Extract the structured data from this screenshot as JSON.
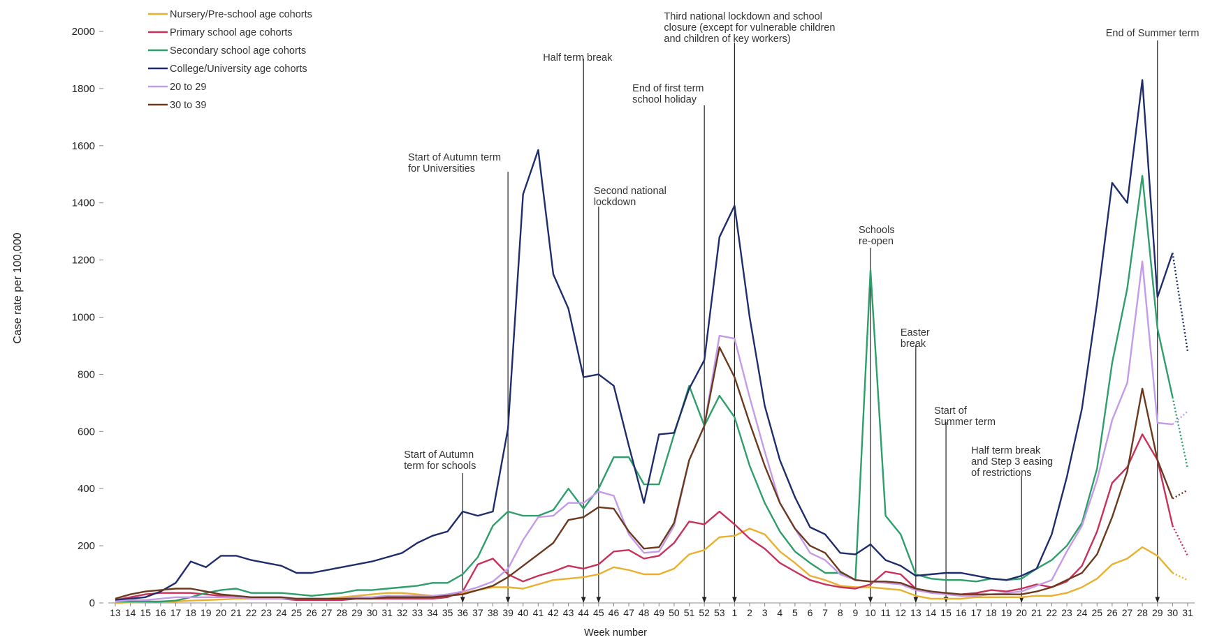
{
  "chart_data": {
    "type": "line",
    "y_label": "Case rate per 100,000",
    "x_label": "Week number",
    "categories": [
      "13",
      "14",
      "15",
      "16",
      "17",
      "18",
      "19",
      "20",
      "21",
      "22",
      "23",
      "24",
      "25",
      "26",
      "27",
      "28",
      "29",
      "30",
      "31",
      "32",
      "33",
      "34",
      "35",
      "36",
      "37",
      "38",
      "39",
      "40",
      "41",
      "42",
      "43",
      "44",
      "45",
      "46",
      "47",
      "48",
      "49",
      "50",
      "51",
      "52",
      "53",
      "1",
      "2",
      "3",
      "4",
      "5",
      "6",
      "7",
      "8",
      "9",
      "10",
      "11",
      "12",
      "13",
      "14",
      "15",
      "16",
      "17",
      "18",
      "19",
      "20",
      "21",
      "22",
      "23",
      "24",
      "25",
      "26",
      "27",
      "28",
      "29",
      "30",
      "31"
    ],
    "ylim": [
      0,
      2000
    ],
    "yticks": [
      0,
      200,
      400,
      600,
      800,
      1000,
      1200,
      1400,
      1600,
      1800,
      2000
    ],
    "grid": false,
    "legend": "top-left",
    "series": [
      {
        "name": "Nursery/Pre-school age cohorts",
        "color": "#e8b02e",
        "values": [
          0,
          2,
          3,
          5,
          5,
          8,
          10,
          12,
          15,
          15,
          15,
          15,
          15,
          15,
          15,
          20,
          25,
          30,
          35,
          35,
          30,
          25,
          25,
          35,
          45,
          55,
          55,
          50,
          65,
          80,
          85,
          90,
          100,
          125,
          115,
          100,
          100,
          120,
          170,
          185,
          230,
          235,
          260,
          240,
          180,
          140,
          95,
          80,
          60,
          55,
          55,
          50,
          45,
          25,
          15,
          15,
          15,
          20,
          20,
          20,
          20,
          25,
          25,
          35,
          55,
          85,
          135,
          155,
          195,
          165,
          105,
          80
        ]
      },
      {
        "name": "Primary school age cohorts",
        "color": "#c8325a",
        "values": [
          10,
          20,
          30,
          35,
          35,
          35,
          30,
          25,
          20,
          15,
          15,
          15,
          10,
          10,
          10,
          10,
          15,
          15,
          15,
          15,
          15,
          15,
          20,
          40,
          135,
          155,
          100,
          75,
          95,
          110,
          130,
          120,
          135,
          180,
          185,
          155,
          165,
          210,
          285,
          275,
          320,
          275,
          225,
          190,
          140,
          110,
          80,
          65,
          55,
          50,
          65,
          110,
          100,
          50,
          40,
          30,
          30,
          35,
          45,
          40,
          50,
          65,
          55,
          75,
          130,
          250,
          420,
          475,
          590,
          500,
          270,
          165
        ]
      },
      {
        "name": "Secondary school age cohorts",
        "color": "#2e9e6a",
        "values": [
          5,
          5,
          5,
          5,
          8,
          20,
          35,
          45,
          50,
          35,
          35,
          35,
          30,
          25,
          30,
          35,
          45,
          45,
          50,
          55,
          60,
          70,
          70,
          100,
          160,
          270,
          320,
          305,
          305,
          325,
          400,
          330,
          400,
          510,
          510,
          415,
          415,
          590,
          760,
          620,
          725,
          650,
          480,
          350,
          250,
          180,
          140,
          105,
          105,
          80,
          1165,
          305,
          240,
          100,
          85,
          80,
          80,
          75,
          85,
          80,
          85,
          120,
          150,
          200,
          280,
          470,
          840,
          1100,
          1495,
          960,
          720,
          470
        ]
      },
      {
        "name": "College/University age cohorts",
        "color": "#1f2d6b",
        "values": [
          10,
          15,
          20,
          40,
          70,
          145,
          125,
          165,
          165,
          150,
          140,
          130,
          105,
          105,
          115,
          125,
          135,
          145,
          160,
          175,
          210,
          235,
          250,
          320,
          305,
          320,
          610,
          1430,
          1585,
          1150,
          1030,
          790,
          800,
          760,
          550,
          350,
          590,
          595,
          750,
          850,
          1280,
          1390,
          1000,
          690,
          500,
          370,
          265,
          240,
          175,
          170,
          205,
          150,
          130,
          95,
          100,
          105,
          105,
          95,
          85,
          80,
          95,
          120,
          240,
          440,
          680,
          1050,
          1470,
          1400,
          1830,
          1070,
          1225,
          880
        ]
      },
      {
        "name": "20 to 29",
        "color": "#c39be8",
        "values": [
          5,
          10,
          10,
          15,
          20,
          20,
          20,
          20,
          20,
          15,
          15,
          15,
          15,
          15,
          15,
          15,
          20,
          20,
          25,
          25,
          25,
          25,
          30,
          40,
          55,
          75,
          120,
          220,
          300,
          305,
          350,
          350,
          390,
          375,
          240,
          175,
          180,
          270,
          500,
          620,
          935,
          925,
          720,
          530,
          350,
          260,
          175,
          150,
          100,
          80,
          75,
          70,
          65,
          45,
          35,
          30,
          25,
          25,
          30,
          35,
          40,
          60,
          80,
          180,
          270,
          430,
          640,
          770,
          1195,
          630,
          625,
          670
        ]
      },
      {
        "name": "30 to 39",
        "color": "#6b3a1e",
        "values": [
          15,
          30,
          40,
          45,
          50,
          50,
          40,
          30,
          25,
          20,
          20,
          20,
          15,
          15,
          15,
          15,
          15,
          15,
          20,
          20,
          20,
          20,
          25,
          30,
          45,
          60,
          90,
          130,
          170,
          210,
          290,
          300,
          335,
          330,
          250,
          190,
          195,
          280,
          500,
          620,
          895,
          790,
          630,
          480,
          350,
          260,
          200,
          175,
          110,
          80,
          75,
          75,
          70,
          50,
          40,
          35,
          30,
          30,
          30,
          30,
          30,
          40,
          55,
          80,
          105,
          170,
          300,
          460,
          750,
          500,
          365,
          395
        ]
      }
    ],
    "annotations": [
      {
        "lines": [
          "Start of Autumn",
          "term for schools"
        ],
        "week_index": 23
      },
      {
        "lines": [
          "Start of Autumn term",
          "for Universities"
        ],
        "week_index": 26
      },
      {
        "lines": [
          "Half term break"
        ],
        "week_index": 31
      },
      {
        "lines": [
          "Second national",
          "lockdown"
        ],
        "week_index": 32
      },
      {
        "lines": [
          "End of first term",
          "school holiday"
        ],
        "week_index": 39
      },
      {
        "lines": [
          "Third national lockdown and school",
          "closure (except for vulnerable children",
          "and children of key workers)"
        ],
        "week_index": 41
      },
      {
        "lines": [
          "Schools",
          "re-open"
        ],
        "week_index": 50
      },
      {
        "lines": [
          "Easter",
          "break"
        ],
        "week_index": 53
      },
      {
        "lines": [
          "Start of",
          "Summer term"
        ],
        "week_index": 55
      },
      {
        "lines": [
          "Half term break",
          "and Step 3 easing",
          "of restrictions"
        ],
        "week_index": 60
      },
      {
        "lines": [
          "End of Summer term"
        ],
        "week_index": 69
      }
    ]
  }
}
